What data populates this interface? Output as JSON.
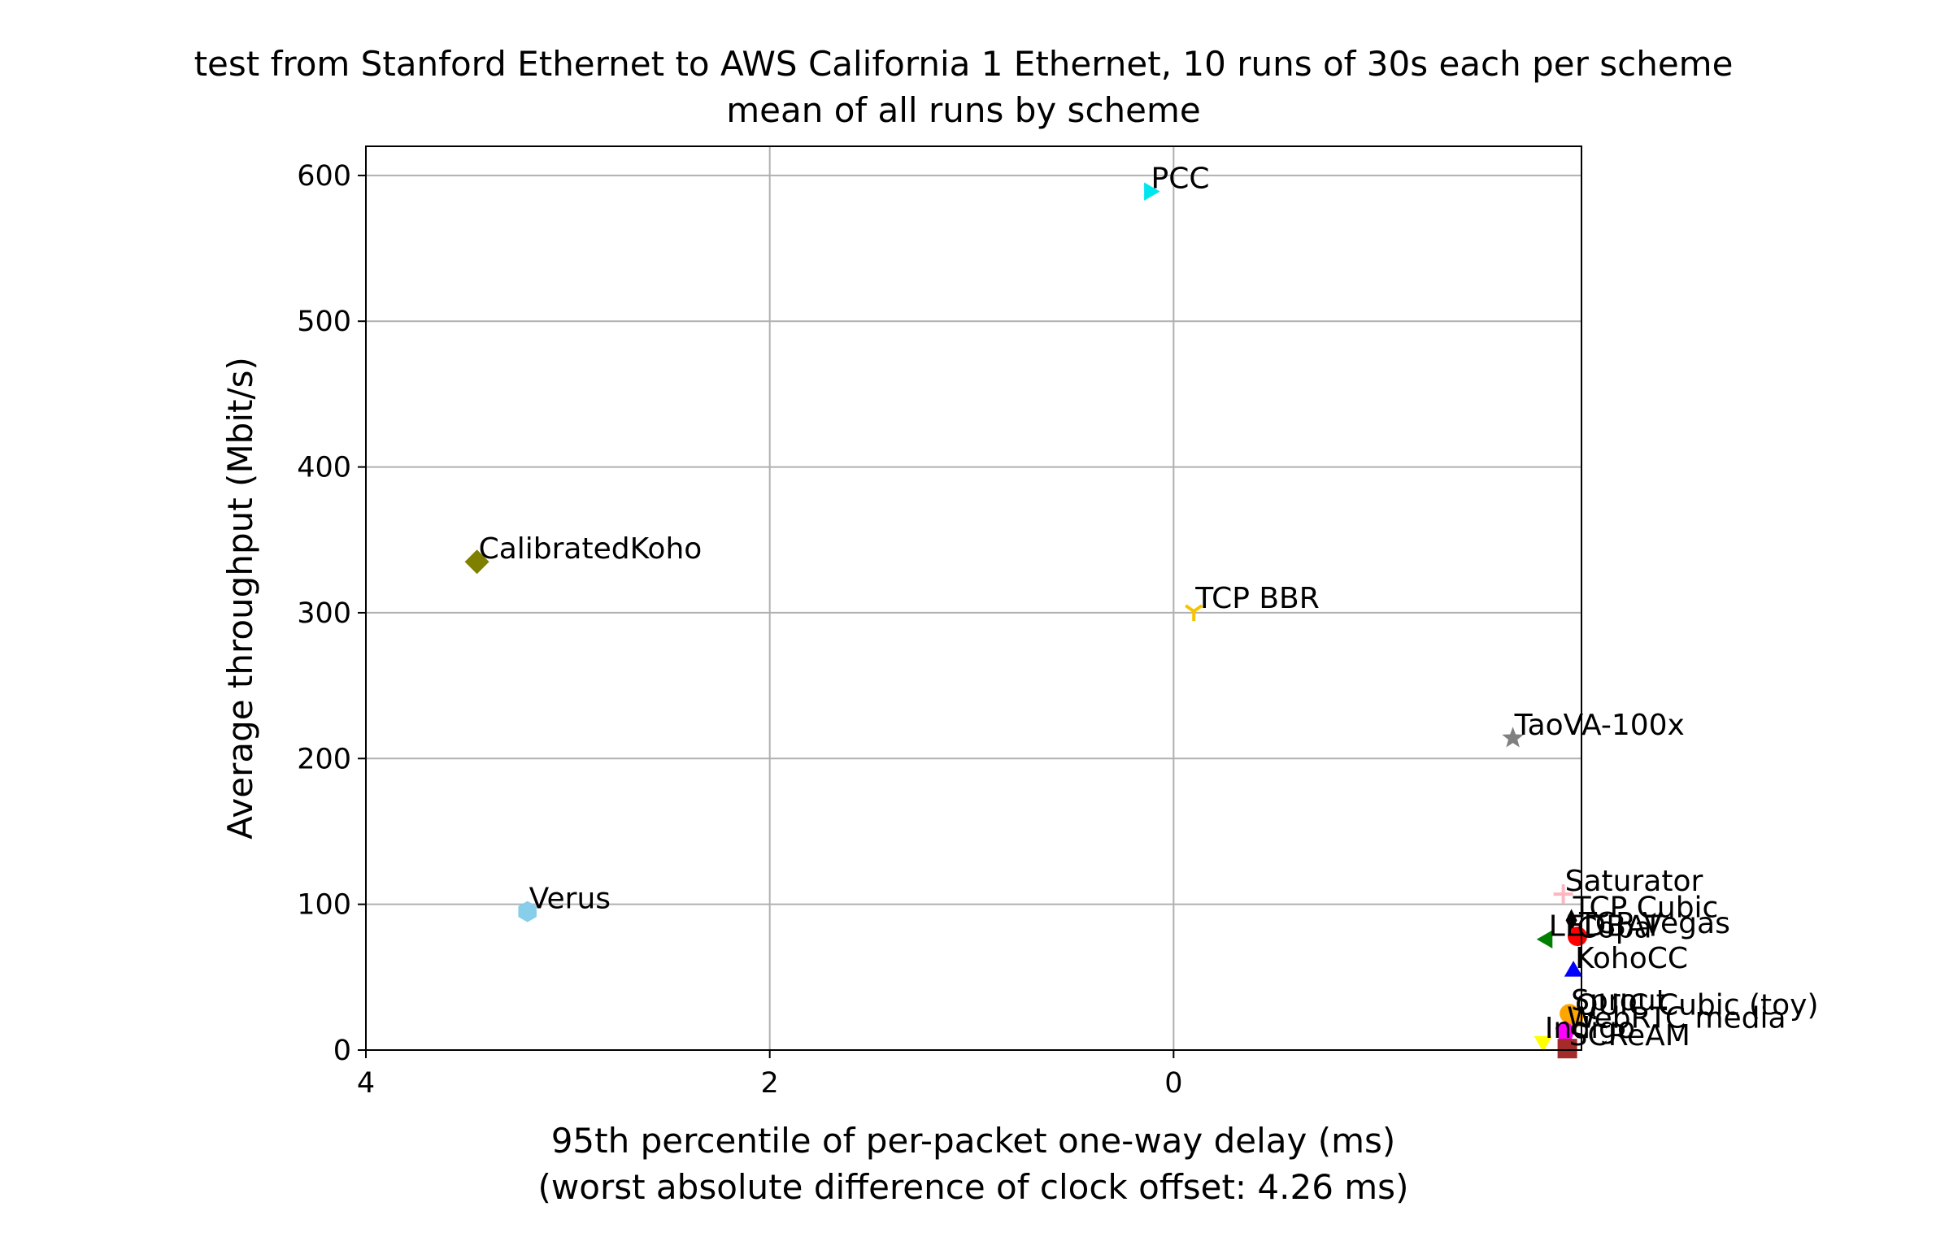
{
  "chart_data": {
    "type": "scatter",
    "title": "test from Stanford Ethernet to AWS California 1 Ethernet, 10 runs of 30s each per scheme",
    "subtitle": "mean of all runs by scheme",
    "xlabel": "95th percentile of per-packet one-way delay (ms)",
    "xlabel_note": "(worst absolute difference of clock offset: 4.26 ms)",
    "ylabel": "Average throughput (Mbit/s)",
    "x_inverted": true,
    "xlim": [
      4.0,
      -2.02
    ],
    "ylim": [
      0,
      620
    ],
    "grid": true,
    "legend": "none",
    "x_ticks": [
      {
        "value": 4,
        "label": "4"
      },
      {
        "value": 2,
        "label": "2"
      },
      {
        "value": 0,
        "label": "0"
      }
    ],
    "y_ticks": [
      {
        "value": 0,
        "label": "0"
      },
      {
        "value": 100,
        "label": "100"
      },
      {
        "value": 200,
        "label": "200"
      },
      {
        "value": 300,
        "label": "300"
      },
      {
        "value": 400,
        "label": "400"
      },
      {
        "value": 500,
        "label": "500"
      },
      {
        "value": 600,
        "label": "600"
      }
    ],
    "points": [
      {
        "label": "PCC",
        "x": 0.12,
        "y": 589,
        "marker": "triangle-right",
        "color": "#00e5ee"
      },
      {
        "label": "CalibratedKoho",
        "x": 3.45,
        "y": 335,
        "marker": "diamond",
        "color": "#808000"
      },
      {
        "label": "TCP BBR",
        "x": -0.1,
        "y": 301,
        "marker": "tri-down",
        "color": "#f5c400"
      },
      {
        "label": "TaoVA-100x",
        "x": -1.68,
        "y": 214,
        "marker": "star",
        "color": "#808080"
      },
      {
        "label": "Verus",
        "x": 3.2,
        "y": 95,
        "marker": "hexagon",
        "color": "#87ceeb"
      },
      {
        "label": "Saturator",
        "x": -1.93,
        "y": 107,
        "marker": "plus",
        "color": "#ffb6c1"
      },
      {
        "label": "TCP Cubic",
        "x": -1.97,
        "y": 89,
        "marker": "thin-diamond",
        "color": "#000000"
      },
      {
        "label": "TCP Vegas",
        "x": -2.0,
        "y": 78,
        "marker": "circle",
        "color": "#ff0000"
      },
      {
        "label": "LEDBAT",
        "x": -1.85,
        "y": 76,
        "marker": "triangle-left",
        "color": "#008000"
      },
      {
        "label": "Copa",
        "x": -1.99,
        "y": 75,
        "marker": "none",
        "color": "#000000"
      },
      {
        "label": "KohoCC",
        "x": -1.98,
        "y": 54,
        "marker": "triangle-up",
        "color": "#0000ff"
      },
      {
        "label": "Sprout",
        "x": -1.96,
        "y": 25,
        "marker": "circle",
        "color": "#ffa500"
      },
      {
        "label": "QUIC Cubic (toy)",
        "x": -1.98,
        "y": 22,
        "marker": "circle",
        "color": "#ffa500"
      },
      {
        "label": "WebRTC media",
        "x": -1.94,
        "y": 13,
        "marker": "pentagon",
        "color": "#ff00ff"
      },
      {
        "label": "Indigo",
        "x": -1.83,
        "y": 6,
        "marker": "triangle-down",
        "color": "#ffff00"
      },
      {
        "label": "SCReAM",
        "x": -1.95,
        "y": 1,
        "marker": "square",
        "color": "#a52a2a"
      }
    ]
  }
}
